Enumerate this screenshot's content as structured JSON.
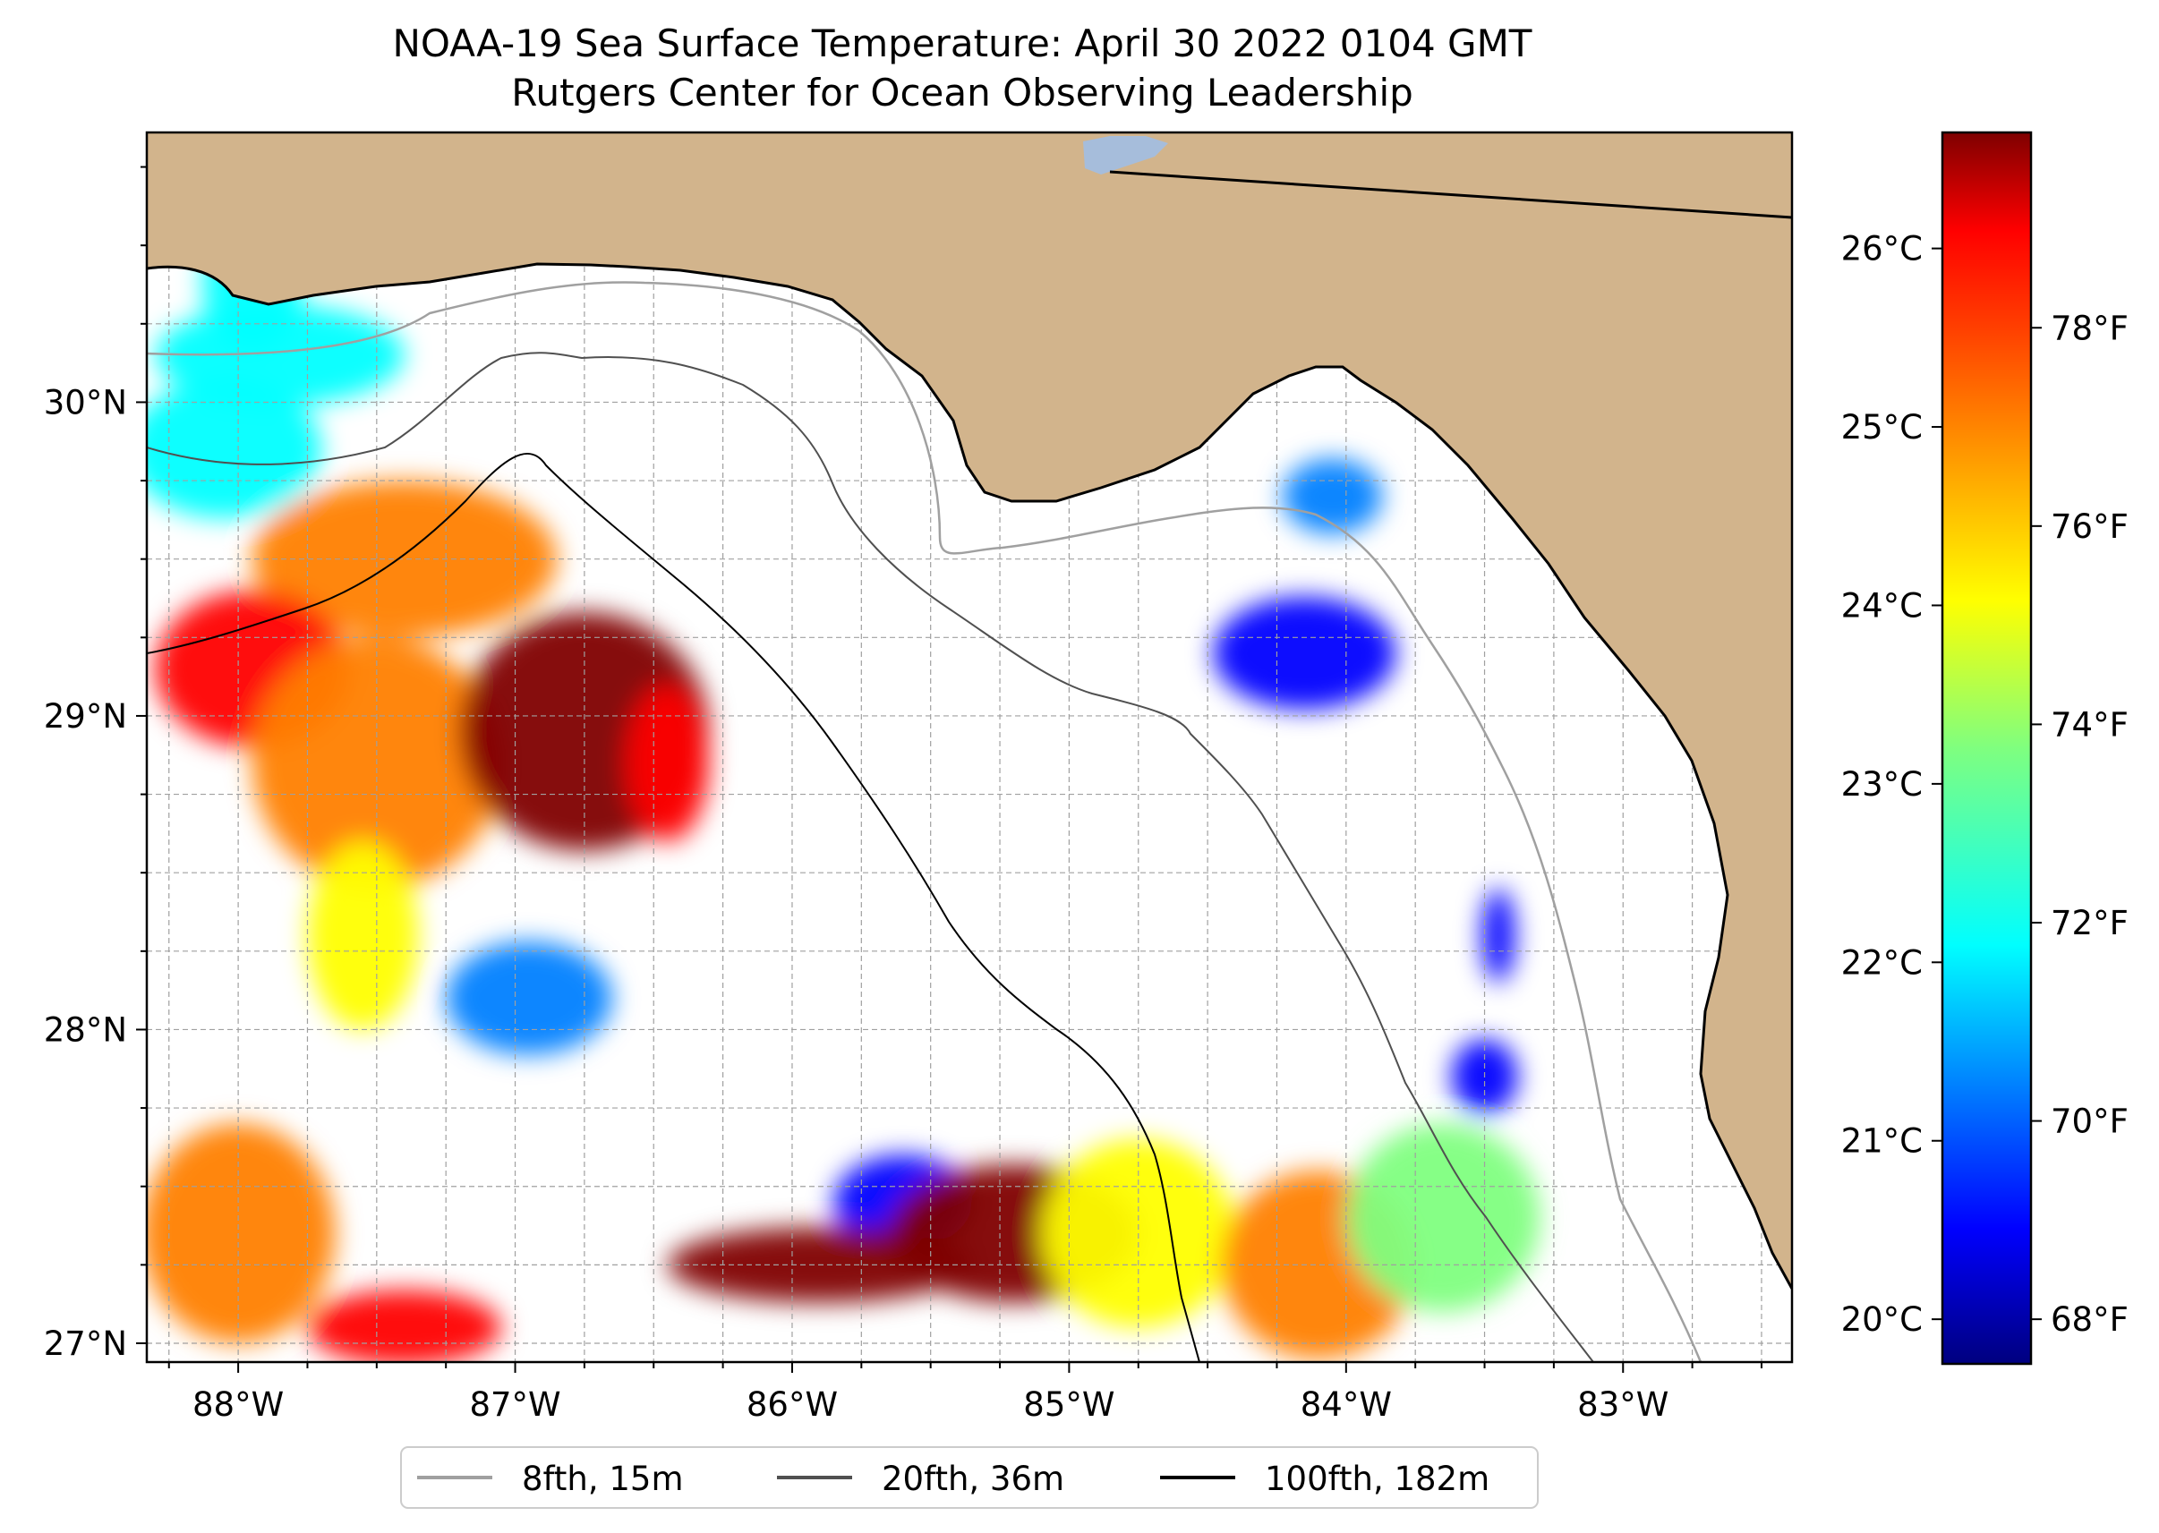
{
  "title": {
    "line1": "NOAA-19 Sea Surface Temperature: April 30 2022 0104 GMT",
    "line2": "Rutgers Center for Ocean Observing Leadership"
  },
  "colors": {
    "land": "#d2b48c",
    "ocean": "#ffffff",
    "lake": "#a6bddb",
    "coastline": "#000000",
    "gridline": "#a0a0a0",
    "contour_8fth": "#a0a0a0",
    "contour_20fth": "#505050",
    "contour_100fth": "#000000",
    "sst_palette": [
      "#00007f",
      "#0000ff",
      "#007fff",
      "#00ffff",
      "#7fff7f",
      "#ffff00",
      "#ff7f00",
      "#ff0000",
      "#7f0000"
    ]
  },
  "map_axes": {
    "lon_range": [
      -88.33,
      -82.39
    ],
    "lat_range": [
      26.94,
      30.86
    ],
    "lon_ticks": [
      {
        "value": -88,
        "label": "88°W"
      },
      {
        "value": -87,
        "label": "87°W"
      },
      {
        "value": -86,
        "label": "86°W"
      },
      {
        "value": -85,
        "label": "85°W"
      },
      {
        "value": -84,
        "label": "84°W"
      },
      {
        "value": -83,
        "label": "83°W"
      }
    ],
    "lat_ticks": [
      {
        "value": 27,
        "label": "27°N"
      },
      {
        "value": 28,
        "label": "28°N"
      },
      {
        "value": 29,
        "label": "29°N"
      },
      {
        "value": 30,
        "label": "30°N"
      }
    ],
    "grid_step_degrees": 0.25
  },
  "colorbar": {
    "range_c": [
      19.75,
      26.65
    ],
    "celsius_ticks": [
      {
        "value": 20,
        "label": "20°C"
      },
      {
        "value": 21,
        "label": "21°C"
      },
      {
        "value": 22,
        "label": "22°C"
      },
      {
        "value": 23,
        "label": "23°C"
      },
      {
        "value": 24,
        "label": "24°C"
      },
      {
        "value": 25,
        "label": "25°C"
      },
      {
        "value": 26,
        "label": "26°C"
      }
    ],
    "fahrenheit_ticks": [
      {
        "value": 68,
        "label": "68°F"
      },
      {
        "value": 70,
        "label": "70°F"
      },
      {
        "value": 72,
        "label": "72°F"
      },
      {
        "value": 74,
        "label": "74°F"
      },
      {
        "value": 76,
        "label": "76°F"
      },
      {
        "value": 78,
        "label": "78°F"
      }
    ]
  },
  "legend": {
    "entries": [
      {
        "label": "8fth, 15m",
        "color": "#a0a0a0"
      },
      {
        "label": "20fth, 36m",
        "color": "#505050"
      },
      {
        "label": "100fth, 182m",
        "color": "#000000"
      }
    ]
  },
  "sst_patches": [
    {
      "name": "mobile-bay",
      "lon": -87.95,
      "lat": 30.38,
      "rx": 0.18,
      "ry": 0.22,
      "temp": 22.4
    },
    {
      "name": "mississippi-sound",
      "lon": -87.85,
      "lat": 30.15,
      "rx": 0.45,
      "ry": 0.16,
      "temp": 22.3
    },
    {
      "name": "west-shelf-cool",
      "lon": -88.05,
      "lat": 29.85,
      "rx": 0.35,
      "ry": 0.22,
      "temp": 22.7
    },
    {
      "name": "central-shelf-warm",
      "lon": -87.4,
      "lat": 29.5,
      "rx": 0.55,
      "ry": 0.25,
      "temp": 25.2
    },
    {
      "name": "west-warm-band",
      "lon": -87.95,
      "lat": 29.15,
      "rx": 0.35,
      "ry": 0.25,
      "temp": 25.5
    },
    {
      "name": "central-orange",
      "lon": -87.5,
      "lat": 28.85,
      "rx": 0.45,
      "ry": 0.4,
      "temp": 24.6
    },
    {
      "name": "south-tongue",
      "lon": -87.55,
      "lat": 28.3,
      "rx": 0.2,
      "ry": 0.3,
      "temp": 24.4
    },
    {
      "name": "hot-core",
      "lon": -86.75,
      "lat": 28.95,
      "rx": 0.45,
      "ry": 0.38,
      "temp": 26.6
    },
    {
      "name": "east-loop-edge",
      "lon": -86.45,
      "lat": 28.85,
      "rx": 0.15,
      "ry": 0.25,
      "temp": 25.8
    },
    {
      "name": "scattered-cool",
      "lon": -86.95,
      "lat": 28.1,
      "rx": 0.3,
      "ry": 0.18,
      "temp": 21.6
    },
    {
      "name": "big-bend-cold",
      "lon": -84.15,
      "lat": 29.2,
      "rx": 0.33,
      "ry": 0.18,
      "temp": 20.3
    },
    {
      "name": "big-bend-north",
      "lon": -84.05,
      "lat": 29.7,
      "rx": 0.18,
      "ry": 0.12,
      "temp": 21.3
    },
    {
      "name": "east-blue-strip",
      "lon": -83.45,
      "lat": 28.3,
      "rx": 0.06,
      "ry": 0.15,
      "temp": 20.5
    },
    {
      "name": "sw-orange",
      "lon": -88.0,
      "lat": 27.35,
      "rx": 0.35,
      "ry": 0.35,
      "temp": 25.2
    },
    {
      "name": "sw-red-patch",
      "lon": -87.4,
      "lat": 27.05,
      "rx": 0.35,
      "ry": 0.12,
      "temp": 26.2
    },
    {
      "name": "southern-cool-edge",
      "lon": -85.6,
      "lat": 27.45,
      "rx": 0.25,
      "ry": 0.15,
      "temp": 20.4
    },
    {
      "name": "southern-filament",
      "lon": -85.9,
      "lat": 27.25,
      "rx": 0.55,
      "ry": 0.12,
      "temp": 26.5
    },
    {
      "name": "southern-hot-core",
      "lon": -85.2,
      "lat": 27.35,
      "rx": 0.45,
      "ry": 0.22,
      "temp": 26.6
    },
    {
      "name": "southern-mixed",
      "lon": -84.75,
      "lat": 27.35,
      "rx": 0.35,
      "ry": 0.3,
      "temp": 24.2
    },
    {
      "name": "south-central-yellow",
      "lon": -84.1,
      "lat": 27.25,
      "rx": 0.35,
      "ry": 0.3,
      "temp": 24.8
    },
    {
      "name": "se-green",
      "lon": -83.65,
      "lat": 27.4,
      "rx": 0.35,
      "ry": 0.3,
      "temp": 23.6
    },
    {
      "name": "se-blue-north",
      "lon": -83.5,
      "lat": 27.85,
      "rx": 0.12,
      "ry": 0.12,
      "temp": 20.6
    }
  ]
}
